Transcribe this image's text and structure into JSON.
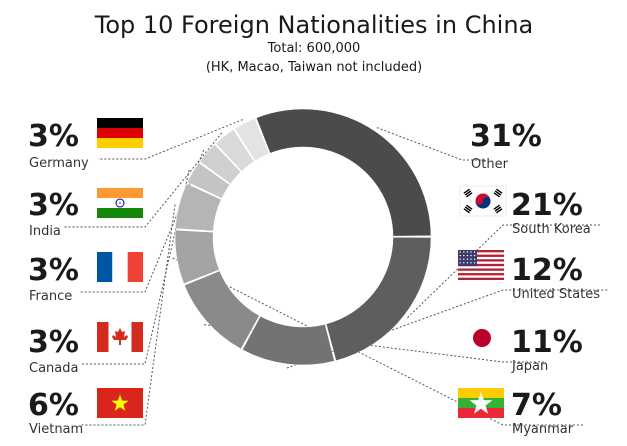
{
  "chart_data": {
    "type": "pie",
    "donut": true,
    "title": "Top 10 Foreign Nationalities in China",
    "subtitle": [
      "Total: 600,000",
      "(HK, Macao, Taiwan not included)"
    ],
    "categories": [
      "Other",
      "South Korea",
      "United States",
      "Japan",
      "Myanmar",
      "Vietnam",
      "Canada",
      "France",
      "India",
      "Germany"
    ],
    "values": [
      31,
      21,
      12,
      11,
      7,
      6,
      3,
      3,
      3,
      3
    ],
    "value_labels": [
      "31%",
      "21%",
      "12%",
      "11%",
      "7%",
      "6%",
      "3%",
      "3%",
      "3%",
      "3%"
    ],
    "flag_icons": [
      null,
      "south-korea-flag-icon",
      "united-states-flag-icon",
      "japan-flag-icon",
      "myanmar-flag-icon",
      "vietnam-flag-icon",
      "canada-flag-icon",
      "france-flag-icon",
      "india-flag-icon",
      "germany-flag-icon"
    ],
    "colors": [
      "#4b4b4b",
      "#5e5e5e",
      "#737373",
      "#8a8a8a",
      "#a3a3a3",
      "#b5b5b5",
      "#c4c4c4",
      "#cfcfcf",
      "#d9d9d9",
      "#e3e3e3"
    ],
    "legend": "none",
    "grid": false
  }
}
